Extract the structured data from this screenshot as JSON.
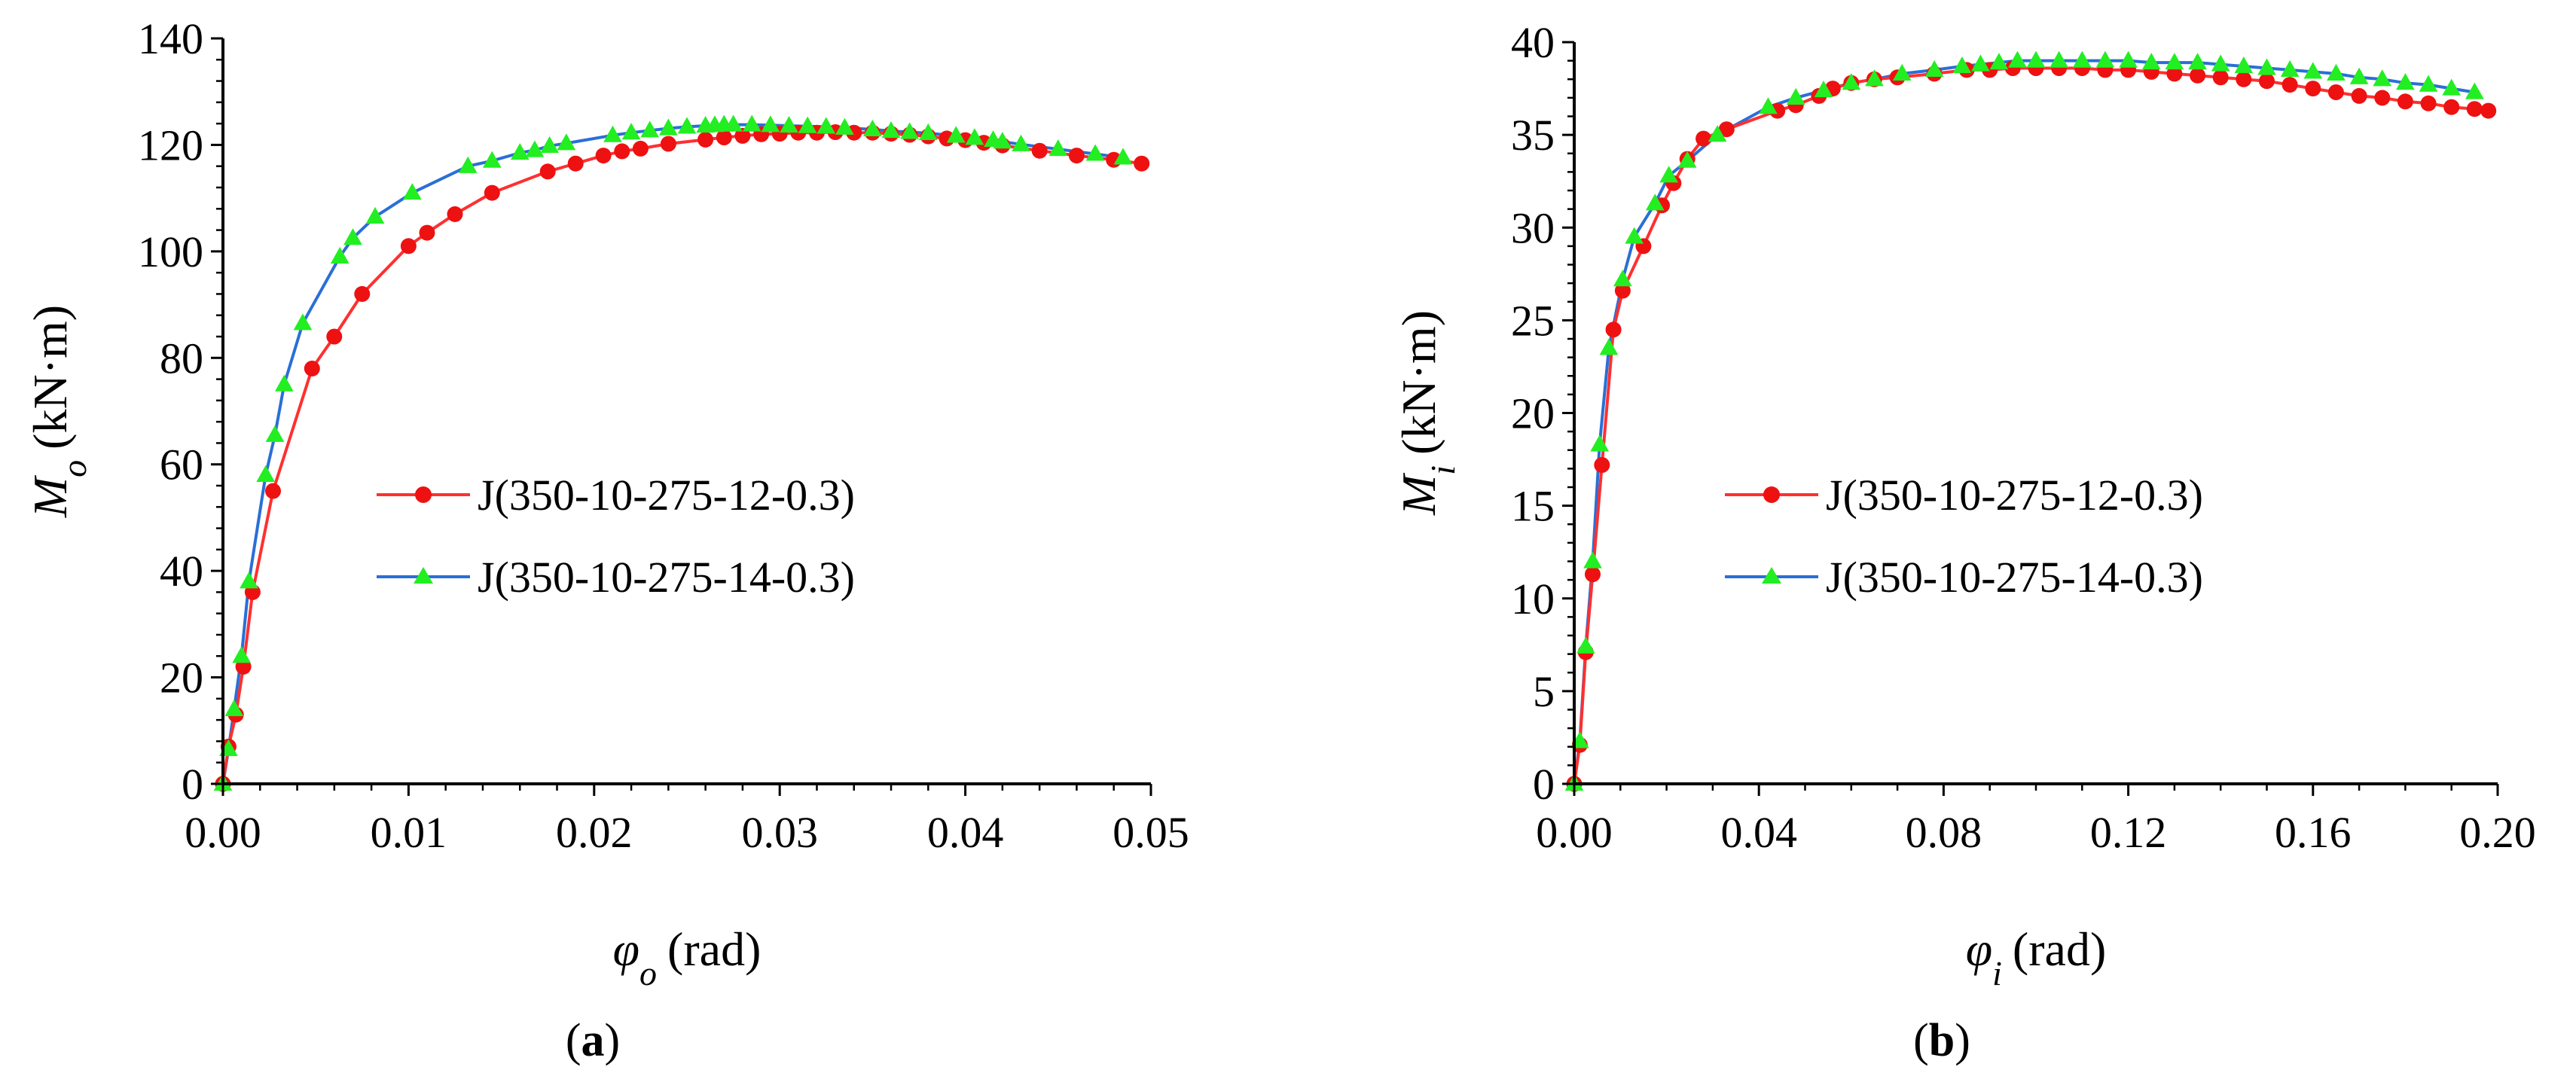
{
  "chart_data": [
    {
      "type": "line",
      "panel_label": {
        "open": "(",
        "letter": "a",
        "close": ")"
      },
      "xlabel": {
        "symbol": "φ",
        "subscript": "o",
        "unit": "(rad)"
      },
      "ylabel": {
        "symbol": "M",
        "subscript": "o",
        "unit": "(kN·m)"
      },
      "xlim": [
        0,
        0.05
      ],
      "ylim": [
        0,
        140
      ],
      "x_ticks": [
        0.0,
        0.01,
        0.02,
        0.03,
        0.04,
        0.05
      ],
      "x_tick_labels": [
        "0.00",
        "0.01",
        "0.02",
        "0.03",
        "0.04",
        "0.05"
      ],
      "y_ticks": [
        0,
        20,
        40,
        60,
        80,
        100,
        120,
        140
      ],
      "y_tick_labels": [
        "0",
        "20",
        "40",
        "60",
        "80",
        "100",
        "120",
        "140"
      ],
      "legend_position": "center-right",
      "grid": false,
      "series": [
        {
          "name": "J(350-10-275-12-0.3)",
          "line_color": "#ff3030",
          "marker_color": "#ee1111",
          "marker": "circle",
          "x": [
            0,
            0.0003,
            0.0007,
            0.0011,
            0.0016,
            0.0027,
            0.0048,
            0.006,
            0.0075,
            0.01,
            0.011,
            0.0125,
            0.0145,
            0.0175,
            0.019,
            0.0205,
            0.0215,
            0.0225,
            0.024,
            0.026,
            0.027,
            0.028,
            0.029,
            0.03,
            0.031,
            0.032,
            0.033,
            0.034,
            0.035,
            0.036,
            0.037,
            0.038,
            0.039,
            0.04,
            0.041,
            0.042,
            0.044,
            0.046,
            0.048,
            0.0495
          ],
          "y": [
            0,
            7,
            13,
            22,
            36,
            55,
            78,
            84,
            92,
            101,
            103.5,
            107,
            111,
            115,
            116.5,
            118,
            118.8,
            119.3,
            120.2,
            121,
            121.4,
            121.7,
            122,
            122.1,
            122.3,
            122.3,
            122.4,
            122.3,
            122.3,
            122.1,
            121.9,
            121.6,
            121.2,
            120.9,
            120.4,
            119.9,
            118.9,
            118,
            117.2,
            116.5
          ]
        },
        {
          "name": "J(350-10-275-14-0.3)",
          "line_color": "#2a6fd6",
          "marker_color": "#22ee22",
          "marker": "triangle",
          "x": [
            0,
            0.0003,
            0.0006,
            0.001,
            0.0014,
            0.0023,
            0.0028,
            0.0033,
            0.0043,
            0.0063,
            0.007,
            0.0082,
            0.0102,
            0.0132,
            0.0145,
            0.016,
            0.0168,
            0.0176,
            0.0185,
            0.021,
            0.022,
            0.023,
            0.024,
            0.025,
            0.026,
            0.0265,
            0.027,
            0.0275,
            0.0285,
            0.0295,
            0.0305,
            0.0315,
            0.0325,
            0.0335,
            0.035,
            0.036,
            0.037,
            0.038,
            0.0395,
            0.0405,
            0.0415,
            0.042,
            0.043,
            0.045,
            0.047,
            0.0485
          ],
          "y": [
            0,
            6.5,
            14,
            24,
            38,
            58,
            65.5,
            75,
            86.5,
            99,
            102.5,
            106.5,
            111,
            116,
            117,
            118.5,
            119,
            119.8,
            120.3,
            121.8,
            122.3,
            122.7,
            123.1,
            123.4,
            123.6,
            123.7,
            123.8,
            123.8,
            123.8,
            123.7,
            123.6,
            123.5,
            123.4,
            123.2,
            122.9,
            122.6,
            122.4,
            122.2,
            121.7,
            121.3,
            120.9,
            120.6,
            120.1,
            119.2,
            118.3,
            117.6
          ]
        }
      ]
    },
    {
      "type": "line",
      "panel_label": {
        "open": "(",
        "letter": "b",
        "close": ")"
      },
      "xlabel": {
        "symbol": "φ",
        "subscript": "i",
        "unit": "(rad)"
      },
      "ylabel": {
        "symbol": "M",
        "subscript": "i",
        "unit": "(kN·m)"
      },
      "xlim": [
        0,
        0.2
      ],
      "ylim": [
        0,
        40
      ],
      "x_ticks": [
        0.0,
        0.04,
        0.08,
        0.12,
        0.16,
        0.2
      ],
      "x_tick_labels": [
        "0.00",
        "0.04",
        "0.08",
        "0.12",
        "0.16",
        "0.20"
      ],
      "y_ticks": [
        0,
        5,
        10,
        15,
        20,
        25,
        30,
        35,
        40
      ],
      "y_tick_labels": [
        "0",
        "5",
        "10",
        "15",
        "20",
        "25",
        "30",
        "35",
        "40"
      ],
      "legend_position": "center-right",
      "grid": false,
      "series": [
        {
          "name": "J(350-10-275-12-0.3)",
          "line_color": "#ff3030",
          "marker_color": "#ee1111",
          "marker": "circle",
          "x": [
            0,
            0.0012,
            0.0025,
            0.004,
            0.006,
            0.0085,
            0.0105,
            0.015,
            0.019,
            0.0215,
            0.0245,
            0.028,
            0.033,
            0.044,
            0.048,
            0.053,
            0.056,
            0.06,
            0.065,
            0.07,
            0.078,
            0.085,
            0.09,
            0.095,
            0.1,
            0.105,
            0.11,
            0.115,
            0.12,
            0.125,
            0.13,
            0.135,
            0.14,
            0.145,
            0.15,
            0.155,
            0.16,
            0.165,
            0.17,
            0.175,
            0.18,
            0.185,
            0.19,
            0.195,
            0.198
          ],
          "y": [
            0,
            2.1,
            7.1,
            11.3,
            17.2,
            24.5,
            26.6,
            29,
            31.2,
            32.4,
            33.7,
            34.8,
            35.3,
            36.3,
            36.6,
            37.1,
            37.5,
            37.8,
            38,
            38.1,
            38.3,
            38.5,
            38.5,
            38.6,
            38.6,
            38.6,
            38.6,
            38.5,
            38.5,
            38.4,
            38.3,
            38.2,
            38.1,
            38,
            37.9,
            37.7,
            37.5,
            37.3,
            37.1,
            37,
            36.8,
            36.7,
            36.5,
            36.4,
            36.3
          ]
        },
        {
          "name": "J(350-10-275-14-0.3)",
          "line_color": "#2a6fd6",
          "marker_color": "#22ee22",
          "marker": "triangle",
          "x": [
            0,
            0.0012,
            0.0025,
            0.004,
            0.0055,
            0.0075,
            0.0105,
            0.013,
            0.0175,
            0.0205,
            0.0245,
            0.031,
            0.042,
            0.048,
            0.054,
            0.06,
            0.065,
            0.071,
            0.078,
            0.084,
            0.088,
            0.092,
            0.096,
            0.1,
            0.105,
            0.11,
            0.115,
            0.12,
            0.125,
            0.13,
            0.135,
            0.14,
            0.145,
            0.15,
            0.155,
            0.16,
            0.165,
            0.17,
            0.175,
            0.18,
            0.185,
            0.19,
            0.195
          ],
          "y": [
            0,
            2.3,
            7.4,
            12,
            18.3,
            23.5,
            27.2,
            29.5,
            31.3,
            32.8,
            33.6,
            35,
            36.5,
            37,
            37.4,
            37.8,
            38,
            38.3,
            38.5,
            38.7,
            38.8,
            38.9,
            39,
            39,
            39,
            39,
            39,
            39,
            38.9,
            38.9,
            38.9,
            38.8,
            38.7,
            38.6,
            38.5,
            38.4,
            38.3,
            38.1,
            38,
            37.8,
            37.7,
            37.5,
            37.3
          ]
        }
      ]
    }
  ]
}
